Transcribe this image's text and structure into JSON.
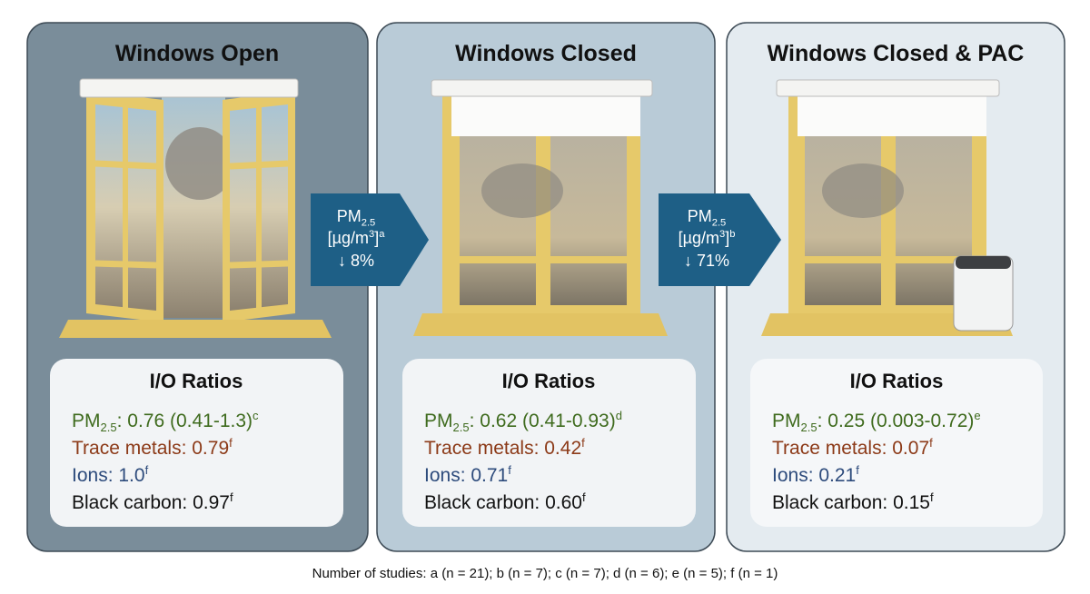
{
  "panels": [
    {
      "title": "Windows Open",
      "ratios_title": "I/O Ratios",
      "ratios": [
        {
          "label": "PM",
          "sub": "2.5",
          "text": ": 0.76 (0.41-1.3)",
          "sup": "c"
        },
        {
          "text": "Trace metals: 0.79",
          "sup": "f"
        },
        {
          "text": "Ions: 1.0",
          "sup": "f"
        },
        {
          "text": "Black carbon: 0.97",
          "sup": "f"
        }
      ]
    },
    {
      "title": "Windows Closed",
      "ratios_title": "I/O Ratios",
      "ratios": [
        {
          "label": "PM",
          "sub": "2.5",
          "text": ": 0.62 (0.41-0.93)",
          "sup": "d"
        },
        {
          "text": "Trace metals: 0.42",
          "sup": "f"
        },
        {
          "text": "Ions: 0.71",
          "sup": "f"
        },
        {
          "text": "Black carbon: 0.60",
          "sup": "f"
        }
      ]
    },
    {
      "title": "Windows Closed & PAC",
      "ratios_title": "I/O Ratios",
      "ratios": [
        {
          "label": "PM",
          "sub": "2.5",
          "text": ": 0.25 (0.003-0.72)",
          "sup": "e"
        },
        {
          "text": "Trace metals: 0.07",
          "sup": "f"
        },
        {
          "text": "Ions: 0.21",
          "sup": "f"
        },
        {
          "text": "Black carbon: 0.15",
          "sup": "f"
        }
      ]
    }
  ],
  "arrows": [
    {
      "label": "PM",
      "sub": "2.5",
      "unit": "[µg/m",
      "unit_sup": "3",
      "unit_end": "]",
      "sup": "a",
      "change": "↓ 8%"
    },
    {
      "label": "PM",
      "sub": "2.5",
      "unit": "[µg/m",
      "unit_sup": "3",
      "unit_end": "]",
      "sup": "b",
      "change": "↓ 71%"
    }
  ],
  "footnote": "Number of studies: a (n = 21); b (n = 7); c (n = 7); d (n = 6); e (n = 5); f (n = 1)"
}
